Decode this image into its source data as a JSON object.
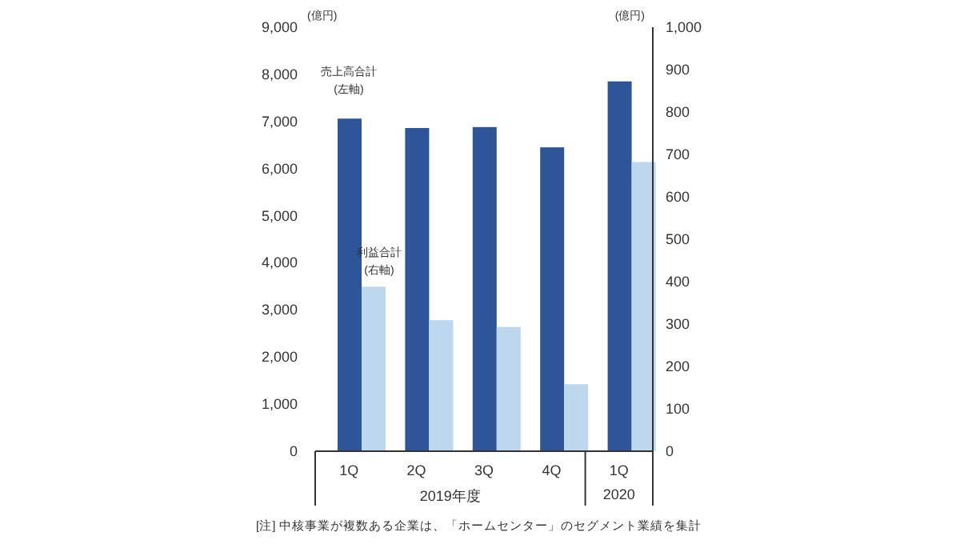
{
  "chart_data": {
    "type": "bar",
    "categories": [
      "1Q",
      "2Q",
      "3Q",
      "4Q",
      "1Q"
    ],
    "series": [
      {
        "name": "売上高合計(左軸)",
        "color": "#2e5597",
        "values": [
          7060,
          6860,
          6880,
          6450,
          7850
        ]
      },
      {
        "name": "利益合計(右軸)",
        "color": "#bdd7ee",
        "axis": "y2",
        "values": [
          388,
          309,
          293,
          158,
          682
        ]
      }
    ],
    "ylabel": "(億円)",
    "y2label": "(億円)",
    "ylim": [
      0,
      9000
    ],
    "yticks": [
      {
        "value": 0,
        "label": "0"
      },
      {
        "value": 1000,
        "label": "1,000"
      },
      {
        "value": 2000,
        "label": "2,000"
      },
      {
        "value": 3000,
        "label": "3,000"
      },
      {
        "value": 4000,
        "label": "4,000"
      },
      {
        "value": 5000,
        "label": "5,000"
      },
      {
        "value": 6000,
        "label": "6,000"
      },
      {
        "value": 7000,
        "label": "7,000"
      },
      {
        "value": 8000,
        "label": "8,000"
      },
      {
        "value": 9000,
        "label": "9,000"
      }
    ],
    "y2lim": [
      0,
      1000
    ],
    "y2ticks": [
      0,
      100,
      200,
      300,
      400,
      500,
      600,
      700,
      800,
      900,
      {
        "value": 1000,
        "label": "1,000"
      }
    ],
    "annotations": [
      "2019年度",
      "2020",
      "[注] 中核事業が複数ある企業は、「ホームセンター」のセグメント業績を集計"
    ],
    "grid": false
  }
}
